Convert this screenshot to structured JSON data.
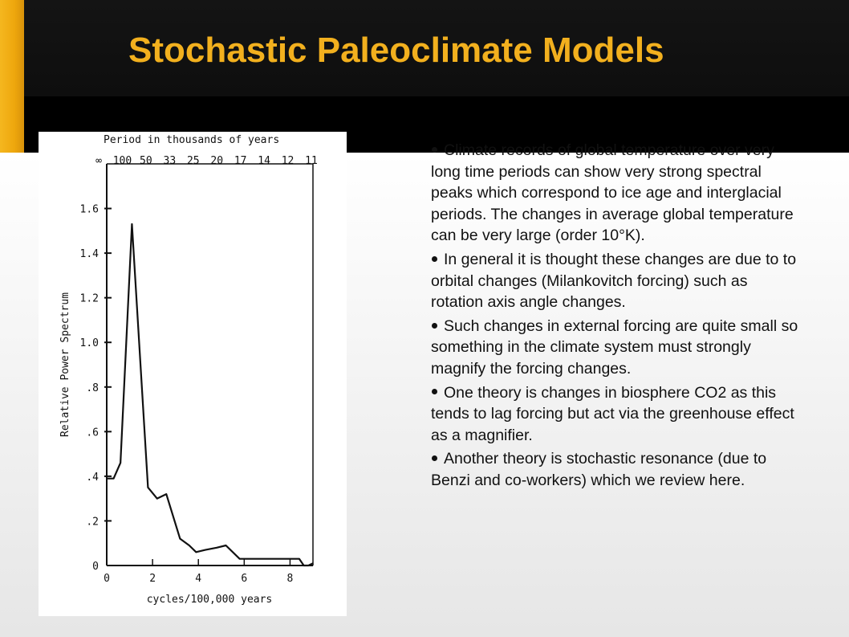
{
  "slide": {
    "title": "Stochastic Paleoclimate Models",
    "colors": {
      "accent": "#f2b01e",
      "title_bar": "#111111",
      "text": "#111111"
    }
  },
  "bullets": [
    "Climate records of global temperature over very long time periods can show very strong spectral peaks which correspond to ice age and interglacial periods. The changes in average global temperature can be very large (order 10°K).",
    "In general it is thought these changes are due to to orbital changes (Milankovitch forcing) such as rotation axis angle changes.",
    "Such changes in external forcing are quite small so something in the climate system must strongly magnify the forcing changes.",
    "One theory is changes in biosphere CO2 as this tends to lag forcing but act via the greenhouse effect as a magnifier.",
    "Another theory is stochastic resonance (due to Benzi and co-workers) which we review here."
  ],
  "chart_data": {
    "type": "line",
    "title": "Period in thousands of years",
    "top_axis_ticks": [
      "∞",
      "100",
      "50",
      "33",
      "25",
      "20",
      "17",
      "14",
      "12",
      "11"
    ],
    "xlabel": "cycles/100,000 years",
    "ylabel": "Relative Power Spectrum",
    "x_ticks": [
      "0",
      "2",
      "4",
      "6",
      "8"
    ],
    "y_ticks": [
      "0",
      ".2",
      ".4",
      ".6",
      ".8",
      "1.0",
      "1.2",
      "1.4",
      "1.6"
    ],
    "xlim": [
      0,
      9
    ],
    "ylim": [
      0,
      1.8
    ],
    "grid": false,
    "series": [
      {
        "x": [
          0,
          0.3,
          0.6,
          1.1,
          1.8,
          2.2,
          2.6,
          3.2,
          3.6,
          3.9,
          4.3,
          4.8,
          5.2,
          5.8,
          6.5,
          7.5,
          8.4,
          8.6,
          8.8,
          9.0
        ],
        "y": [
          0.39,
          0.39,
          0.46,
          1.53,
          0.35,
          0.3,
          0.32,
          0.12,
          0.09,
          0.06,
          0.07,
          0.08,
          0.09,
          0.03,
          0.03,
          0.03,
          0.03,
          0.0,
          0.0,
          0.01
        ]
      }
    ]
  }
}
